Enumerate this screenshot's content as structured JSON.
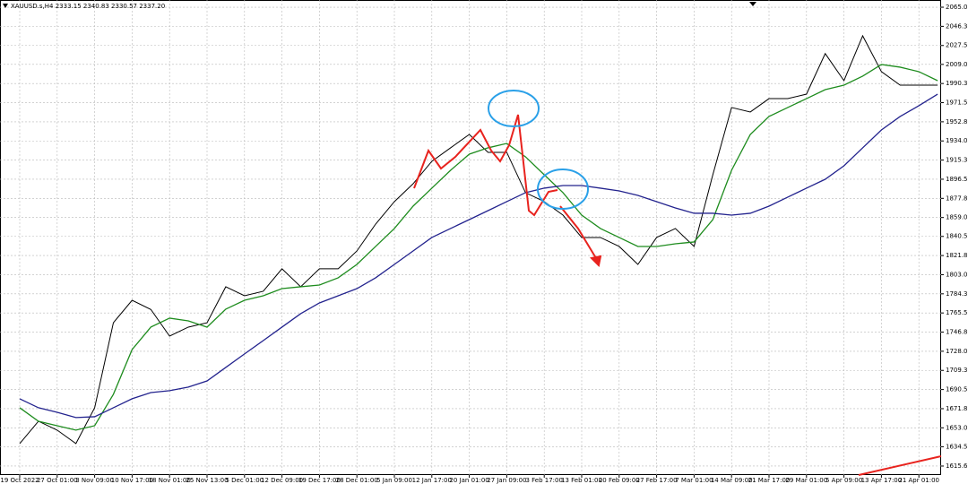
{
  "chart_data": {
    "type": "line",
    "title": "XAUUSD.s,H4 2333.15 2340.83 2330.57 2337.20",
    "categories": [
      "19 Oct 2022",
      null,
      "27 Oct 01:00",
      null,
      "3 Nov 09:00",
      null,
      "10 Nov 17:00",
      null,
      "18 Nov 01:00",
      null,
      "25 Nov 13:00",
      null,
      "5 Dec 01:00",
      null,
      "12 Dec 09:00",
      null,
      "19 Dec 17:00",
      null,
      "28 Dec 01:00",
      null,
      "5 Jan 09:00",
      null,
      "12 Jan 17:00",
      null,
      "20 Jan 01:00",
      null,
      "27 Jan 09:00",
      null,
      "3 Feb 17:00",
      null,
      "13 Feb 01:00",
      null,
      "20 Feb 09:00",
      null,
      "27 Feb 17:00",
      null,
      "7 Mar 01:00",
      null,
      "14 Mar 09:00",
      null,
      "21 Mar 17:00",
      null,
      "29 Mar 01:00",
      null,
      "5 Apr 09:00",
      null,
      "13 Apr 17:00",
      null,
      "21 Apr 01:00",
      null
    ],
    "series": [
      {
        "color": "#000000",
        "values": [
          1637.6,
          1659.5,
          1650.8,
          1637.6,
          1672.7,
          1756.0,
          1778.0,
          1769.0,
          1742.9,
          1751.7,
          1756.0,
          1791.2,
          1782.4,
          1786.8,
          1808.8,
          1791.2,
          1808.8,
          1808.8,
          1826.3,
          1852.6,
          1874.6,
          1892.1,
          1914.1,
          1927.3,
          1940.4,
          1922.9,
          1922.9,
          1883.4,
          1874.6,
          1861.4,
          1839.5,
          1839.5,
          1830.7,
          1813.1,
          1839.5,
          1848.3,
          1830.7,
          1900.9,
          1966.8,
          1962.4,
          1975.5,
          1975.5,
          1979.9,
          2019.6,
          1993.1,
          2037.0,
          2001.9,
          1988.7,
          1988.7,
          1988.7
        ]
      },
      {
        "color": "#1e8c1e",
        "values": [
          1672.7,
          1659.5,
          1655.1,
          1650.8,
          1655.1,
          1685.9,
          1729.7,
          1751.7,
          1760.5,
          1757.8,
          1751.7,
          1769.3,
          1778.0,
          1782.4,
          1789.4,
          1791.2,
          1792.9,
          1800.0,
          1813.1,
          1830.7,
          1848.3,
          1870.2,
          1887.8,
          1905.3,
          1921.1,
          1927.3,
          1931.6,
          1918.5,
          1900.9,
          1883.4,
          1861.4,
          1848.3,
          1839.5,
          1830.7,
          1830.7,
          1833.3,
          1835.1,
          1857.0,
          1905.3,
          1940.4,
          1958.0,
          1966.8,
          1975.5,
          1984.3,
          1988.7,
          1997.5,
          2008.9,
          2006.3,
          2001.9,
          1993.1
        ]
      },
      {
        "color": "#23238e",
        "values": [
          1681.5,
          1672.7,
          1668.3,
          1663.1,
          1663.9,
          1672.7,
          1681.5,
          1687.6,
          1689.4,
          1692.9,
          1699.0,
          1712.2,
          1725.4,
          1738.5,
          1751.7,
          1764.9,
          1775.4,
          1782.4,
          1789.4,
          1800.0,
          1813.1,
          1826.3,
          1839.5,
          1848.3,
          1857.0,
          1865.8,
          1874.6,
          1883.4,
          1887.8,
          1890.4,
          1890.4,
          1887.8,
          1885.1,
          1880.7,
          1874.6,
          1868.4,
          1863.2,
          1863.2,
          1861.4,
          1863.2,
          1870.2,
          1879.0,
          1887.8,
          1896.5,
          1909.7,
          1927.3,
          1944.8,
          1958.0,
          1968.6,
          1979.9
        ]
      }
    ],
    "ylim": [
      1606.8,
      2072.1
    ],
    "yticks": [
      2065.05,
      {
        "value": 2046.3,
        "label": "2046.30"
      },
      2027.55,
      2009.05,
      {
        "value": 1990.3,
        "label": "1990.30"
      },
      1971.55,
      {
        "value": 1952.8,
        "label": "1952.80"
      },
      1934.05,
      {
        "value": 1915.3,
        "label": "1915.30"
      },
      1896.55,
      {
        "value": 1877.8,
        "label": "1877.80"
      },
      1859.05,
      1840.55,
      {
        "value": 1821.8,
        "label": "1821.80"
      },
      1803.05,
      {
        "value": 1784.3,
        "label": "1784.30"
      },
      1765.55,
      {
        "value": 1746.8,
        "label": "1746.80"
      },
      1728.05,
      {
        "value": 1709.3,
        "label": "1709.30"
      },
      1690.55,
      {
        "value": 1671.8,
        "label": "1671.80"
      },
      1653.05,
      1634.55,
      {
        "value": 1615.6,
        "label": "1615.60"
      }
    ],
    "grid": true
  }
}
